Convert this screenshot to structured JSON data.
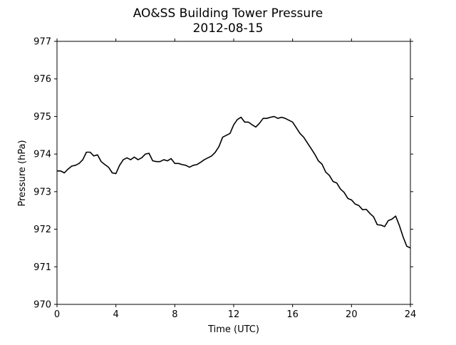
{
  "chart_data": {
    "type": "line",
    "title": "AO&SS Building Tower Pressure",
    "subtitle": "2012-08-15",
    "xlabel": "Time (UTC)",
    "ylabel": "Pressure (hPa)",
    "xlim": [
      0,
      24
    ],
    "ylim": [
      970,
      977
    ],
    "x_ticks": [
      0,
      4,
      8,
      12,
      16,
      20,
      24
    ],
    "x_tick_labels": [
      "0",
      "4",
      "8",
      "12",
      "16",
      "20",
      "24"
    ],
    "y_ticks": [
      970,
      971,
      972,
      973,
      974,
      975,
      976,
      977
    ],
    "y_tick_labels": [
      "970",
      "971",
      "972",
      "973",
      "974",
      "975",
      "976",
      "977"
    ],
    "grid": false,
    "legend": "none",
    "line_color": "#000000",
    "series": [
      {
        "x": [
          0.0,
          0.25,
          0.5,
          0.75,
          1.0,
          1.25,
          1.5,
          1.75,
          2.0,
          2.25,
          2.5,
          2.75,
          3.0,
          3.25,
          3.5,
          3.75,
          4.0,
          4.25,
          4.5,
          4.75,
          5.0,
          5.25,
          5.5,
          5.75,
          6.0,
          6.25,
          6.5,
          6.75,
          7.0,
          7.25,
          7.5,
          7.75,
          8.0,
          8.25,
          8.5,
          8.75,
          9.0,
          9.25,
          9.5,
          9.75,
          10.0,
          10.25,
          10.5,
          10.75,
          11.0,
          11.25,
          11.5,
          11.75,
          12.0,
          12.25,
          12.5,
          12.75,
          13.0,
          13.25,
          13.5,
          13.75,
          14.0,
          14.25,
          14.5,
          14.75,
          15.0,
          15.25,
          15.5,
          15.75,
          16.0,
          16.25,
          16.5,
          16.75,
          17.0,
          17.25,
          17.5,
          17.75,
          18.0,
          18.25,
          18.5,
          18.75,
          19.0,
          19.25,
          19.5,
          19.75,
          20.0,
          20.25,
          20.5,
          20.75,
          21.0,
          21.25,
          21.5,
          21.75,
          22.0,
          22.25,
          22.5,
          22.75,
          23.0,
          23.25,
          23.5,
          23.75,
          24.0
        ],
        "values": [
          973.55,
          973.55,
          973.5,
          973.6,
          973.68,
          973.7,
          973.75,
          973.85,
          974.05,
          974.05,
          973.95,
          973.98,
          973.8,
          973.72,
          973.65,
          973.5,
          973.48,
          973.7,
          973.85,
          973.9,
          973.85,
          973.92,
          973.85,
          973.9,
          974.0,
          974.02,
          973.82,
          973.8,
          973.8,
          973.85,
          973.82,
          973.88,
          973.75,
          973.75,
          973.72,
          973.7,
          973.65,
          973.7,
          973.72,
          973.78,
          973.85,
          973.9,
          973.95,
          974.05,
          974.2,
          974.45,
          974.5,
          974.55,
          974.78,
          974.92,
          974.98,
          974.85,
          974.85,
          974.78,
          974.72,
          974.82,
          974.95,
          974.95,
          974.98,
          975.0,
          974.95,
          974.98,
          974.95,
          974.9,
          974.85,
          974.7,
          974.55,
          974.45,
          974.3,
          974.15,
          974.0,
          973.85,
          973.7,
          973.55,
          973.4,
          973.3,
          973.2,
          973.1,
          972.95,
          972.85,
          972.75,
          972.7,
          972.6,
          972.55,
          972.5,
          972.45,
          972.3,
          972.15,
          972.08,
          972.1,
          972.2,
          972.3,
          972.35,
          972.1,
          971.8,
          971.55,
          971.5
        ]
      }
    ]
  }
}
